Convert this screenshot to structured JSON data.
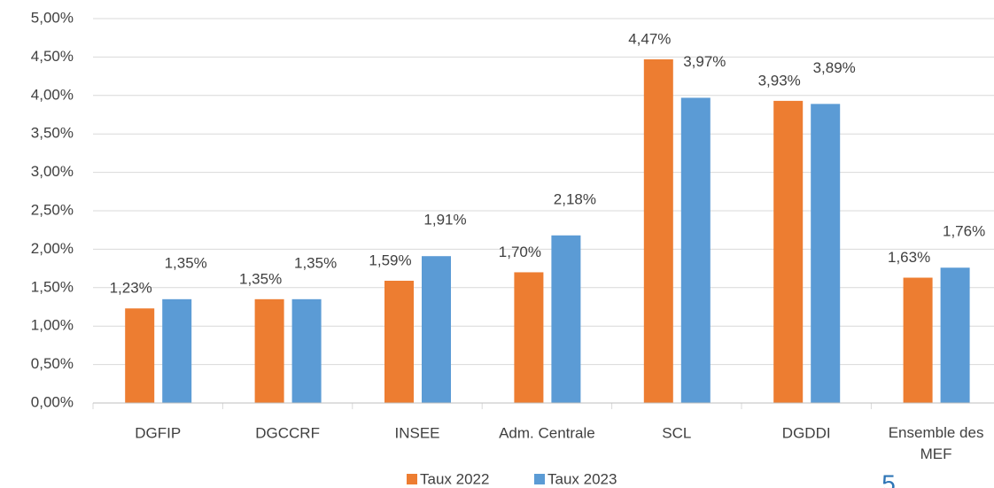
{
  "chart_data": {
    "type": "bar",
    "categories": [
      "DGFIP",
      "DGCCRF",
      "INSEE",
      "Adm. Centrale",
      "SCL",
      "DGDDI",
      "Ensemble des MEF"
    ],
    "series": [
      {
        "name": "Taux 2022",
        "color": "#ED7D31",
        "values": [
          1.23,
          1.35,
          1.59,
          1.7,
          4.47,
          3.93,
          1.63
        ],
        "value_labels": [
          "1,23%",
          "1,35%",
          "1,59%",
          "1,70%",
          "4,47%",
          "3,93%",
          "1,63%"
        ]
      },
      {
        "name": "Taux 2023",
        "color": "#5B9BD5",
        "values": [
          1.35,
          1.35,
          1.91,
          2.18,
          3.97,
          3.89,
          1.76
        ],
        "value_labels": [
          "1,35%",
          "1,35%",
          "1,91%",
          "2,18%",
          "3,97%",
          "3,89%",
          "1,76%"
        ]
      }
    ],
    "ylim": [
      0,
      5
    ],
    "yticks": [
      {
        "value": 0,
        "label": "0,00%"
      },
      {
        "value": 0.5,
        "label": "0,50%"
      },
      {
        "value": 1,
        "label": "1,00%"
      },
      {
        "value": 1.5,
        "label": "1,50%"
      },
      {
        "value": 2,
        "label": "2,00%"
      },
      {
        "value": 2.5,
        "label": "2,50%"
      },
      {
        "value": 3,
        "label": "3,00%"
      },
      {
        "value": 3.5,
        "label": "3,50%"
      },
      {
        "value": 4,
        "label": "4,00%"
      },
      {
        "value": 4.5,
        "label": "4,50%"
      },
      {
        "value": 5,
        "label": "5,00%"
      }
    ],
    "grid": true,
    "legend": "bottom",
    "page_number": "5"
  }
}
